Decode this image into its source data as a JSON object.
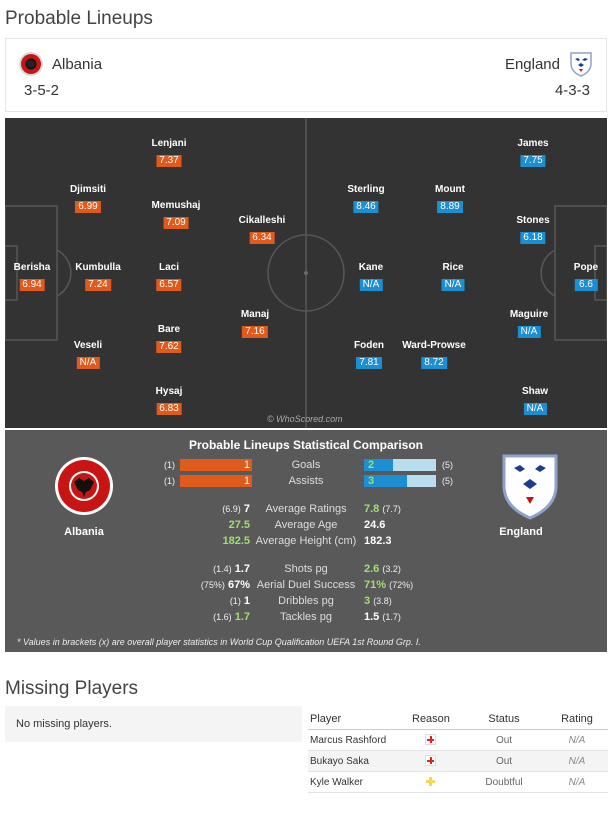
{
  "titles": {
    "lineups": "Probable Lineups",
    "missing": "Missing Players"
  },
  "teams": {
    "home": {
      "name": "Albania",
      "formation": "3-5-2",
      "crest": "albania-crest-icon"
    },
    "away": {
      "name": "England",
      "formation": "4-3-3",
      "crest": "england-crest-icon"
    }
  },
  "pitch": {
    "home": [
      {
        "name": "Berisha",
        "rating": "6.94"
      },
      {
        "name": "Djimsiti",
        "rating": "6.99"
      },
      {
        "name": "Kumbulla",
        "rating": "7.24"
      },
      {
        "name": "Veseli",
        "rating": "N/A"
      },
      {
        "name": "Lenjani",
        "rating": "7.37"
      },
      {
        "name": "Memushaj",
        "rating": "7.09"
      },
      {
        "name": "Laci",
        "rating": "6.57"
      },
      {
        "name": "Bare",
        "rating": "7.62"
      },
      {
        "name": "Hysaj",
        "rating": "6.83"
      },
      {
        "name": "Cikalleshi",
        "rating": "6.34"
      },
      {
        "name": "Manaj",
        "rating": "7.16"
      }
    ],
    "away": [
      {
        "name": "Pope",
        "rating": "6.6"
      },
      {
        "name": "James",
        "rating": "7.75"
      },
      {
        "name": "Stones",
        "rating": "6.18"
      },
      {
        "name": "Maguire",
        "rating": "N/A"
      },
      {
        "name": "Shaw",
        "rating": "N/A"
      },
      {
        "name": "Mount",
        "rating": "8.89"
      },
      {
        "name": "Rice",
        "rating": "N/A"
      },
      {
        "name": "Ward-Prowse",
        "rating": "8.72"
      },
      {
        "name": "Sterling",
        "rating": "8.46"
      },
      {
        "name": "Kane",
        "rating": "N/A"
      },
      {
        "name": "Foden",
        "rating": "7.81"
      }
    ],
    "watermark": "© WhoScored.com"
  },
  "comparison": {
    "title": "Probable Lineups Statistical Comparison",
    "home_label": "Albania",
    "away_label": "England",
    "goals": {
      "label": "Goals",
      "home": "1",
      "away": "2",
      "home_br": "(1)",
      "away_br": "(5)",
      "away_fill": 0.4
    },
    "assists": {
      "label": "Assists",
      "home": "1",
      "away": "3",
      "home_br": "(1)",
      "away_br": "(5)",
      "away_fill": 0.6
    },
    "ratings": {
      "label": "Average Ratings",
      "home": "7",
      "home_br": "(6.9)",
      "away": "7.8",
      "away_br": "(7.7)"
    },
    "age": {
      "label": "Average Age",
      "home": "27.5",
      "away": "24.6"
    },
    "height": {
      "label": "Average Height (cm)",
      "home": "182.5",
      "away": "182.3"
    },
    "shots": {
      "label": "Shots pg",
      "home": "1.7",
      "home_br": "(1.4)",
      "away": "2.6",
      "away_br": "(3.2)"
    },
    "aerial": {
      "label": "Aerial Duel Success",
      "home": "67%",
      "home_br": "(75%)",
      "away": "71%",
      "away_br": "(72%)"
    },
    "dribbles": {
      "label": "Dribbles pg",
      "home": "1",
      "home_br": "(1)",
      "away": "3",
      "away_br": "(3.8)"
    },
    "tackles": {
      "label": "Tackles pg",
      "home": "1.7",
      "home_br": "(1.6)",
      "away": "1.5",
      "away_br": "(1.7)"
    },
    "footnote": "* Values in brackets (x) are overall player statistics in World Cup Qualification UEFA 1st Round Grp. I."
  },
  "missing": {
    "home_text": "No missing players.",
    "headers": {
      "player": "Player",
      "reason": "Reason",
      "status": "Status",
      "rating": "Rating"
    },
    "rows": [
      {
        "player": "Marcus Rashford",
        "reason": "injury-icon",
        "status": "Out",
        "rating": "N/A"
      },
      {
        "player": "Bukayo Saka",
        "reason": "injury-icon",
        "status": "Out",
        "rating": "N/A"
      },
      {
        "player": "Kyle Walker",
        "reason": "doubtful-icon",
        "status": "Doubtful",
        "rating": "N/A"
      }
    ]
  },
  "colors": {
    "home": "#e05a1b",
    "away": "#1b8fd2",
    "pitch": "#333333",
    "stats_bg": "#595959",
    "win": "#9fe070"
  }
}
